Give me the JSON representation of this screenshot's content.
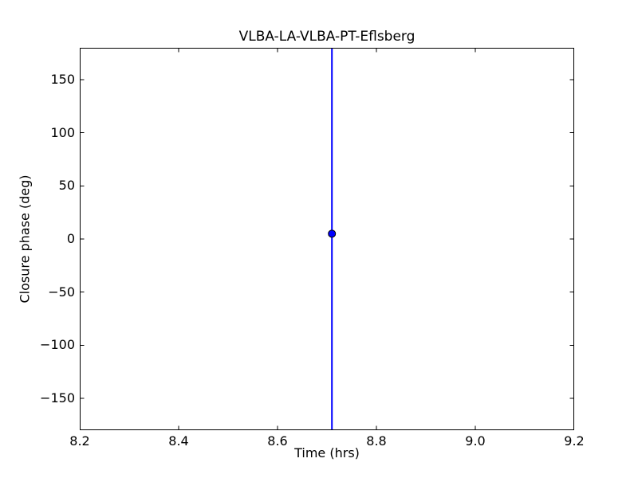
{
  "chart_data": {
    "type": "scatter",
    "title": "VLBA-LA-VLBA-PT-Eflsberg",
    "xlabel": "Time (hrs)",
    "ylabel": "Closure phase (deg)",
    "xlim": [
      8.2,
      9.2
    ],
    "ylim": [
      -180,
      180
    ],
    "xticks": {
      "values": [
        8.2,
        8.4,
        8.6,
        8.8,
        9.0,
        9.2
      ],
      "labels": [
        "8.2",
        "8.4",
        "8.6",
        "8.8",
        "9.0",
        "9.2"
      ]
    },
    "yticks": {
      "values": [
        -150,
        -100,
        -50,
        0,
        50,
        100,
        150
      ],
      "labels": [
        "−150",
        "−100",
        "−50",
        "0",
        "50",
        "100",
        "150"
      ]
    },
    "grid": false,
    "legend": null,
    "background_color": "#ffffff",
    "frame_color": "#000000",
    "series": [
      {
        "name": "closure phase",
        "marker": "circle",
        "color": "#0000ff",
        "marker_edge_color": "#000000",
        "points": [
          {
            "x": 8.71,
            "y": 5,
            "yerr": "error bar spans beyond full y-range (clipped at ±180)"
          }
        ]
      }
    ]
  }
}
